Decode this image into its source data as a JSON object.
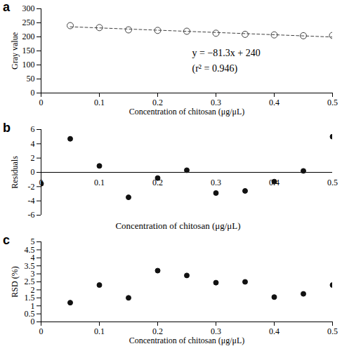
{
  "chart_data": [
    {
      "title": "a",
      "type": "scatter",
      "x_label": "Concentration of chitosan (μg/μL)",
      "y_label": "Gray value",
      "xlim": [
        0,
        0.5
      ],
      "xticks": [
        0,
        0.1,
        0.2,
        0.3,
        0.4,
        0.5
      ],
      "ylim": [
        0,
        300
      ],
      "yticks": [
        0,
        50,
        100,
        150,
        200,
        250,
        300
      ],
      "annotations": [
        "y = −81.3x + 240",
        "(r² = 0.946)"
      ],
      "series": [
        {
          "type": "scatter",
          "marker": "open circle",
          "color": "#404040",
          "x": [
            0.05,
            0.1,
            0.15,
            0.2,
            0.25,
            0.3,
            0.35,
            0.4,
            0.45,
            0.5
          ],
          "values": [
            240,
            233,
            225,
            223,
            220,
            213,
            209,
            207,
            204,
            205
          ]
        },
        {
          "type": "line",
          "line_style": "dashed",
          "color": "#404040",
          "x": [
            0.05,
            0.5
          ],
          "values": [
            235.9,
            199.4
          ]
        }
      ]
    },
    {
      "title": "b",
      "type": "scatter",
      "x_label": "Concentration of chitosan (μg/μL)",
      "y_label": "Residuals",
      "xlim": [
        0,
        0.5
      ],
      "xticks": [
        0,
        0.1,
        0.2,
        0.3,
        0.4,
        0.5
      ],
      "ylim": [
        -6,
        6
      ],
      "yticks": [
        -6,
        -4,
        -2,
        0,
        2,
        4,
        6
      ],
      "series": [
        {
          "type": "scatter",
          "marker": "filled circle",
          "color": "#111111",
          "x": [
            0,
            0.05,
            0.1,
            0.15,
            0.2,
            0.25,
            0.3,
            0.35,
            0.4,
            0.45,
            0.5
          ],
          "values": [
            -1.6,
            4.7,
            0.9,
            -3.5,
            -0.8,
            0.3,
            -2.9,
            -2.6,
            -1.3,
            0.2,
            5.0
          ]
        }
      ]
    },
    {
      "title": "c",
      "type": "scatter",
      "x_label": "Concentration of chitosan (μg/μL)",
      "y_label": "RSD (%)",
      "xlim": [
        0,
        0.5
      ],
      "xticks": [
        0,
        0.1,
        0.2,
        0.3,
        0.4,
        0.5
      ],
      "ylim": [
        0,
        5
      ],
      "yticks": [
        0,
        0.5,
        1,
        1.5,
        2,
        2.5,
        3,
        3.5,
        4,
        4.5,
        5
      ],
      "series": [
        {
          "type": "scatter",
          "marker": "filled circle",
          "color": "#111111",
          "x": [
            0.05,
            0.1,
            0.15,
            0.2,
            0.25,
            0.3,
            0.35,
            0.4,
            0.45,
            0.5
          ],
          "values": [
            1.2,
            2.3,
            1.5,
            3.2,
            2.9,
            2.45,
            2.5,
            1.55,
            1.75,
            2.3
          ]
        }
      ]
    }
  ]
}
